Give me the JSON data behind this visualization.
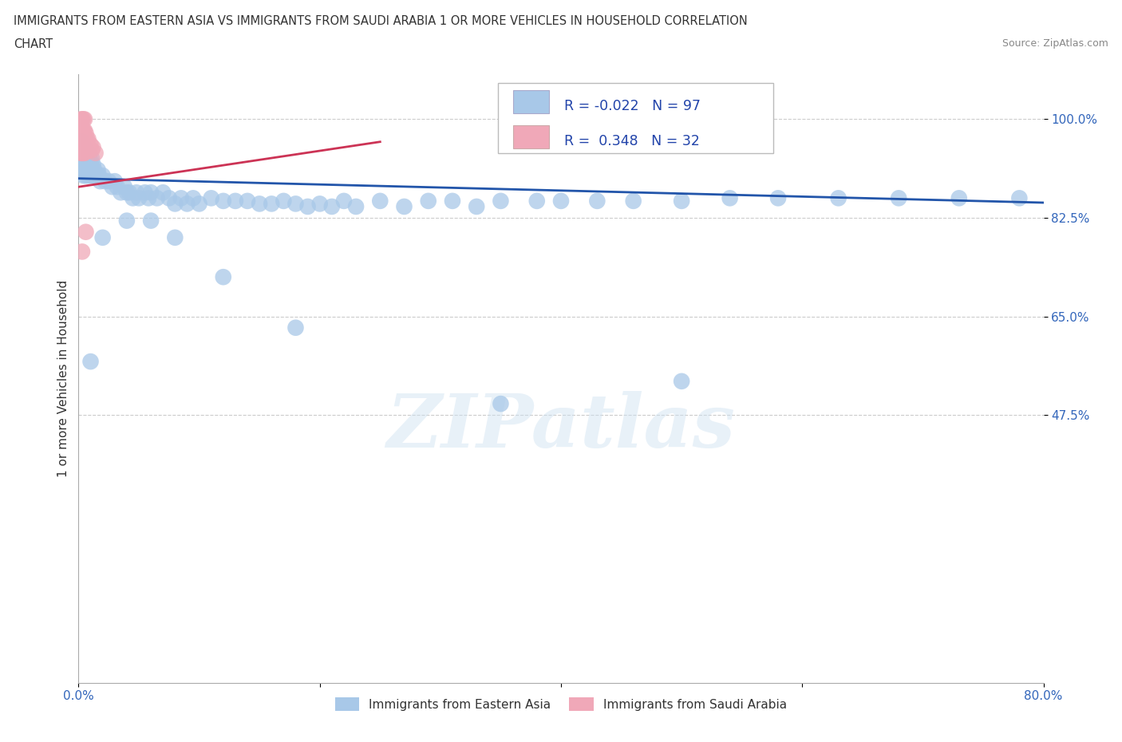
{
  "title_line1": "IMMIGRANTS FROM EASTERN ASIA VS IMMIGRANTS FROM SAUDI ARABIA 1 OR MORE VEHICLES IN HOUSEHOLD CORRELATION",
  "title_line2": "CHART",
  "source_text": "Source: ZipAtlas.com",
  "ylabel": "1 or more Vehicles in Household",
  "xlim": [
    0.0,
    0.8
  ],
  "ylim": [
    0.0,
    1.08
  ],
  "y_ticks": [
    0.475,
    0.65,
    0.825,
    1.0
  ],
  "y_tick_labels": [
    "47.5%",
    "65.0%",
    "82.5%",
    "100.0%"
  ],
  "watermark": "ZIPatlas",
  "blue_color": "#a8c8e8",
  "pink_color": "#f0a8b8",
  "blue_line_color": "#2255aa",
  "pink_line_color": "#cc3355",
  "R_blue": -0.022,
  "N_blue": 97,
  "R_pink": 0.348,
  "N_pink": 32,
  "blue_x": [
    0.001,
    0.002,
    0.002,
    0.003,
    0.003,
    0.003,
    0.004,
    0.004,
    0.004,
    0.005,
    0.005,
    0.005,
    0.006,
    0.006,
    0.006,
    0.007,
    0.007,
    0.008,
    0.008,
    0.008,
    0.009,
    0.009,
    0.01,
    0.01,
    0.011,
    0.011,
    0.012,
    0.012,
    0.013,
    0.014,
    0.015,
    0.016,
    0.017,
    0.018,
    0.02,
    0.022,
    0.025,
    0.028,
    0.03,
    0.032,
    0.035,
    0.038,
    0.04,
    0.042,
    0.045,
    0.048,
    0.05,
    0.055,
    0.058,
    0.06,
    0.065,
    0.07,
    0.075,
    0.08,
    0.085,
    0.09,
    0.095,
    0.1,
    0.11,
    0.12,
    0.13,
    0.14,
    0.15,
    0.16,
    0.17,
    0.18,
    0.19,
    0.2,
    0.21,
    0.22,
    0.23,
    0.25,
    0.27,
    0.29,
    0.31,
    0.33,
    0.35,
    0.38,
    0.4,
    0.43,
    0.46,
    0.5,
    0.54,
    0.58,
    0.63,
    0.68,
    0.73,
    0.78,
    0.01,
    0.02,
    0.04,
    0.06,
    0.08,
    0.12,
    0.18,
    0.35,
    0.5
  ],
  "blue_y": [
    0.94,
    0.92,
    0.95,
    0.91,
    0.93,
    0.96,
    0.9,
    0.92,
    0.94,
    0.91,
    0.93,
    0.95,
    0.9,
    0.92,
    0.94,
    0.91,
    0.93,
    0.9,
    0.92,
    0.94,
    0.91,
    0.93,
    0.9,
    0.92,
    0.91,
    0.93,
    0.9,
    0.92,
    0.91,
    0.9,
    0.9,
    0.91,
    0.9,
    0.89,
    0.9,
    0.89,
    0.89,
    0.88,
    0.89,
    0.88,
    0.87,
    0.88,
    0.87,
    0.87,
    0.86,
    0.87,
    0.86,
    0.87,
    0.86,
    0.87,
    0.86,
    0.87,
    0.86,
    0.85,
    0.86,
    0.85,
    0.86,
    0.85,
    0.86,
    0.855,
    0.855,
    0.855,
    0.85,
    0.85,
    0.855,
    0.85,
    0.845,
    0.85,
    0.845,
    0.855,
    0.845,
    0.855,
    0.845,
    0.855,
    0.855,
    0.845,
    0.855,
    0.855,
    0.855,
    0.855,
    0.855,
    0.855,
    0.86,
    0.86,
    0.86,
    0.86,
    0.86,
    0.86,
    0.57,
    0.79,
    0.82,
    0.82,
    0.79,
    0.72,
    0.63,
    0.495,
    0.535
  ],
  "pink_x": [
    0.001,
    0.001,
    0.002,
    0.002,
    0.002,
    0.002,
    0.003,
    0.003,
    0.003,
    0.003,
    0.004,
    0.004,
    0.004,
    0.004,
    0.005,
    0.005,
    0.005,
    0.005,
    0.006,
    0.006,
    0.006,
    0.007,
    0.007,
    0.008,
    0.008,
    0.009,
    0.01,
    0.011,
    0.012,
    0.014,
    0.003,
    0.006
  ],
  "pink_y": [
    0.96,
    0.98,
    0.94,
    0.96,
    0.98,
    1.0,
    0.94,
    0.96,
    0.98,
    1.0,
    0.94,
    0.96,
    0.98,
    1.0,
    0.94,
    0.96,
    0.98,
    1.0,
    0.95,
    0.96,
    0.975,
    0.95,
    0.965,
    0.95,
    0.965,
    0.945,
    0.955,
    0.945,
    0.95,
    0.94,
    0.765,
    0.8
  ],
  "blue_trend_x": [
    0.0,
    0.8
  ],
  "blue_trend_y": [
    0.895,
    0.852
  ],
  "pink_trend_x": [
    0.0,
    0.25
  ],
  "pink_trend_y": [
    0.88,
    0.96
  ]
}
